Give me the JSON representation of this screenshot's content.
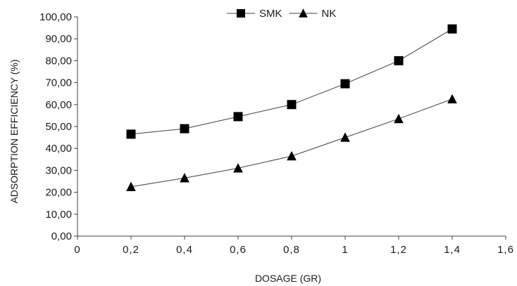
{
  "chart_data": {
    "type": "line",
    "title": "",
    "xlabel": "DOSAGE (GR)",
    "ylabel": "ADSORPTION EFFICIENCY (%)",
    "xlim": [
      0,
      1.6
    ],
    "ylim": [
      0,
      100
    ],
    "x_ticks": [
      0,
      0.2,
      0.4,
      0.6,
      0.8,
      1,
      1.2,
      1.4,
      1.6
    ],
    "x_tick_labels": [
      "0",
      "0,2",
      "0,4",
      "0,6",
      "0,8",
      "1",
      "1,2",
      "1,4",
      "1,6"
    ],
    "y_ticks": [
      0,
      10,
      20,
      30,
      40,
      50,
      60,
      70,
      80,
      90,
      100
    ],
    "y_tick_labels": [
      "0,00",
      "10,00",
      "20,00",
      "30,00",
      "40,00",
      "50,00",
      "60,00",
      "70,00",
      "80,00",
      "90,00",
      "100,00"
    ],
    "grid": false,
    "legend_position": "top-center",
    "series": [
      {
        "name": "SMK",
        "marker": "square",
        "x": [
          0.2,
          0.4,
          0.6,
          0.8,
          1.0,
          1.2,
          1.4
        ],
        "y": [
          46.5,
          49.0,
          54.5,
          60.0,
          69.5,
          80.0,
          94.5
        ]
      },
      {
        "name": "NK",
        "marker": "triangle",
        "x": [
          0.2,
          0.4,
          0.6,
          0.8,
          1.0,
          1.2,
          1.4
        ],
        "y": [
          22.5,
          26.5,
          31.0,
          36.5,
          45.0,
          53.5,
          62.5
        ]
      }
    ],
    "colors": {
      "line": "#404040",
      "marker": "#000000",
      "axis": "#404040"
    }
  }
}
